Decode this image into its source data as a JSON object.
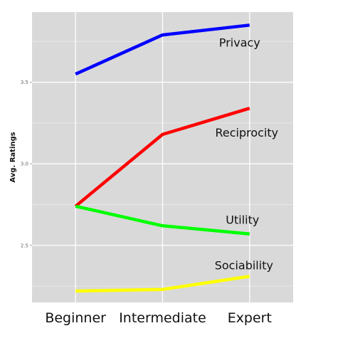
{
  "chart_data": {
    "type": "line",
    "title": "",
    "xlabel": "",
    "ylabel": "Avg. Ratings",
    "categories": [
      "Beginner",
      "Intermediate",
      "Expert"
    ],
    "ylim": [
      2.15,
      3.93
    ],
    "yticks": [
      "2.5",
      "3.0",
      "3.5"
    ],
    "grid": true,
    "legend": "direct labels on lines",
    "series": [
      {
        "name": "Privacy",
        "values": [
          3.55,
          3.79,
          3.85
        ],
        "color": "#0000ff"
      },
      {
        "name": "Reciprocity",
        "values": [
          2.74,
          3.18,
          3.34
        ],
        "color": "#ff0000"
      },
      {
        "name": "Utility",
        "values": [
          2.74,
          2.62,
          2.57
        ],
        "color": "#00ff00"
      },
      {
        "name": "Sociability",
        "values": [
          2.22,
          2.23,
          2.31
        ],
        "color": "#ffff00"
      }
    ],
    "panel_background": "#d9d9d9",
    "grid_color": "#ffffff"
  }
}
